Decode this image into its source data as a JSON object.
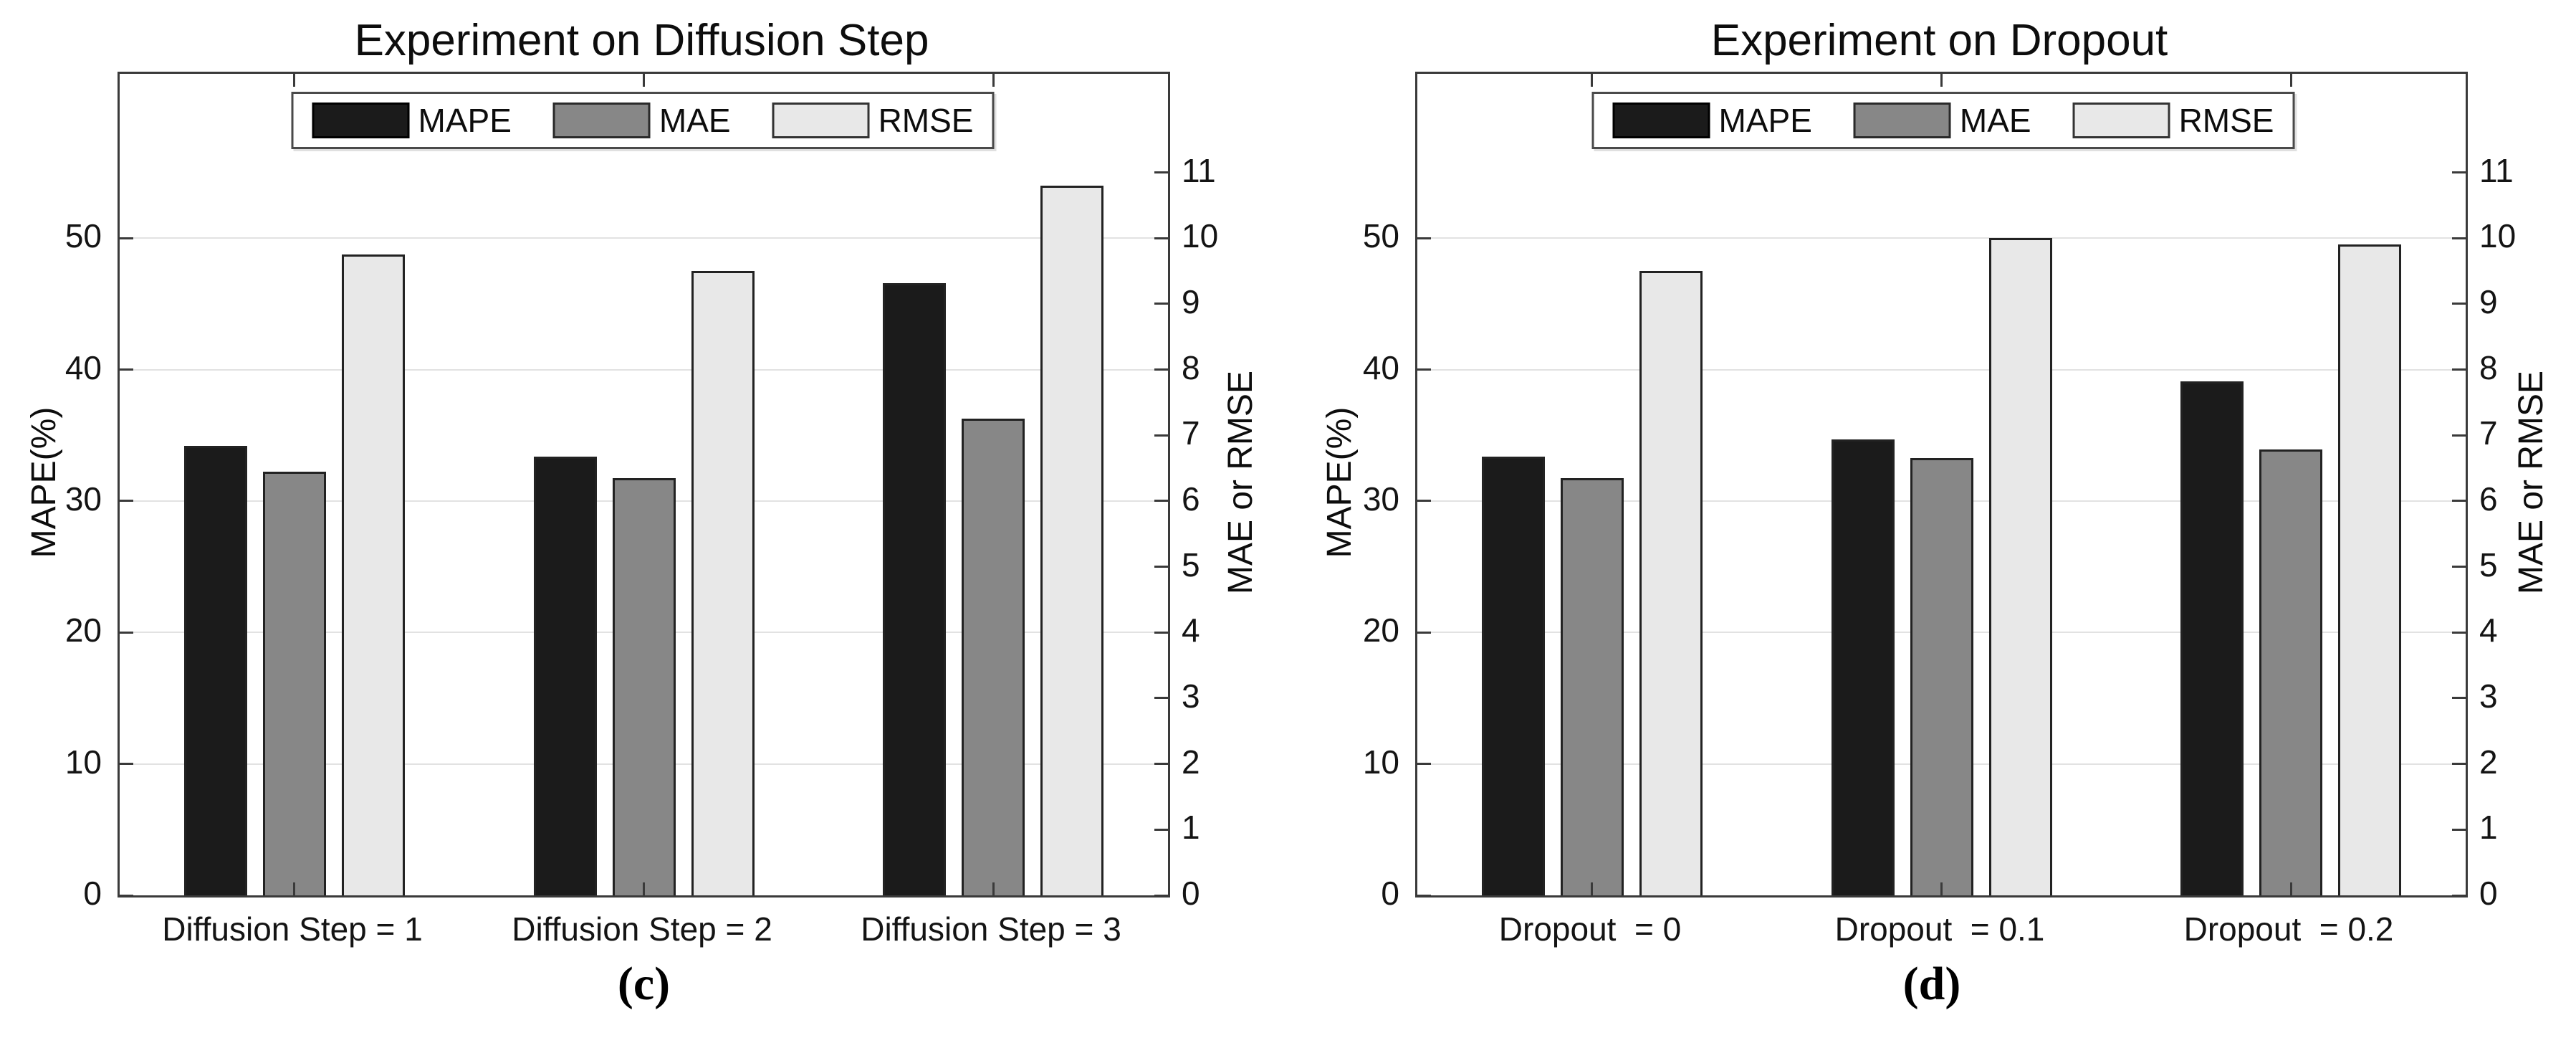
{
  "palette": {
    "mape_fill": "#1b1b1b",
    "mae_fill": "#878787",
    "rmse_fill": "#e8e8e8",
    "bar_edge": "#222222",
    "axis_color": "#3a3a3a",
    "grid_color": "#e2e2e2",
    "text_color": "#111111",
    "background": "#ffffff"
  },
  "chart_data": [
    {
      "type": "bar",
      "title": "Experiment on Diffusion Step",
      "caption": "(c)",
      "ylabel_left": "MAPE(%)",
      "ylabel_right": "MAE or RMSE",
      "categories": [
        "Diffusion Step = 1",
        "Diffusion Step = 2",
        "Diffusion Step = 3"
      ],
      "yticks_left": [
        0,
        10,
        20,
        30,
        40,
        50
      ],
      "yticks_right": [
        0,
        1,
        2,
        3,
        4,
        5,
        6,
        7,
        8,
        9,
        10,
        11
      ],
      "ylim_left": [
        0,
        62.5
      ],
      "ylim_right": [
        0,
        12.5
      ],
      "grid": "horizontal",
      "legend_position": "top-center",
      "series": [
        {
          "name": "MAPE",
          "axis": "left",
          "values": [
            34.2,
            33.4,
            46.6
          ]
        },
        {
          "name": "MAE",
          "axis": "right",
          "values": [
            6.45,
            6.35,
            7.25
          ]
        },
        {
          "name": "RMSE",
          "axis": "right",
          "values": [
            9.75,
            9.5,
            10.8
          ]
        }
      ]
    },
    {
      "type": "bar",
      "title": "Experiment on Dropout",
      "caption": "(d)",
      "ylabel_left": "MAPE(%)",
      "ylabel_right": "MAE or RMSE",
      "categories": [
        "Dropout  = 0",
        "Dropout  = 0.1",
        "Dropout  = 0.2"
      ],
      "yticks_left": [
        0,
        10,
        20,
        30,
        40,
        50
      ],
      "yticks_right": [
        0,
        1,
        2,
        3,
        4,
        5,
        6,
        7,
        8,
        9,
        10,
        11
      ],
      "ylim_left": [
        0,
        62.5
      ],
      "ylim_right": [
        0,
        12.5
      ],
      "grid": "horizontal",
      "legend_position": "top-center",
      "series": [
        {
          "name": "MAPE",
          "axis": "left",
          "values": [
            33.4,
            34.7,
            39.1
          ]
        },
        {
          "name": "MAE",
          "axis": "right",
          "values": [
            6.35,
            6.65,
            6.78
          ]
        },
        {
          "name": "RMSE",
          "axis": "right",
          "values": [
            9.5,
            10.0,
            9.9
          ]
        }
      ]
    }
  ]
}
